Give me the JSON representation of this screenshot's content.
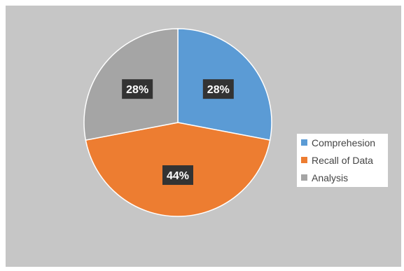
{
  "chart_data": {
    "type": "pie",
    "title": "",
    "categories": [
      "Comprehesion",
      "Recall of Data",
      "Analysis"
    ],
    "values": [
      28,
      44,
      28
    ],
    "data_labels": [
      "28%",
      "44%",
      "28%"
    ],
    "colors": [
      "#5b9bd5",
      "#ed7d31",
      "#a5a5a5"
    ],
    "background_color": "#c6c6c6",
    "legend_position": "right",
    "start_angle": "top, clockwise"
  }
}
